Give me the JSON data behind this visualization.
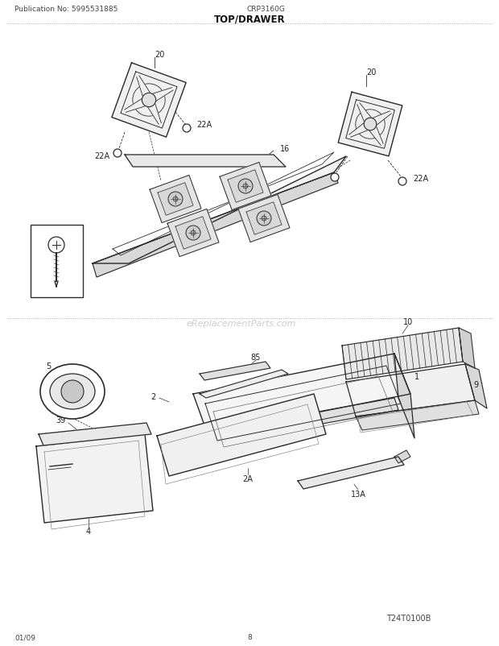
{
  "title": "TOP/DRAWER",
  "pub_no": "Publication No: 5995531885",
  "model": "CRP3160G",
  "date": "01/09",
  "page": "8",
  "watermark": "eReplacementParts.com",
  "diagram_code": "T24T0100B",
  "bg_color": "#ffffff",
  "line_color": "#2a2a2a",
  "text_color": "#222222"
}
